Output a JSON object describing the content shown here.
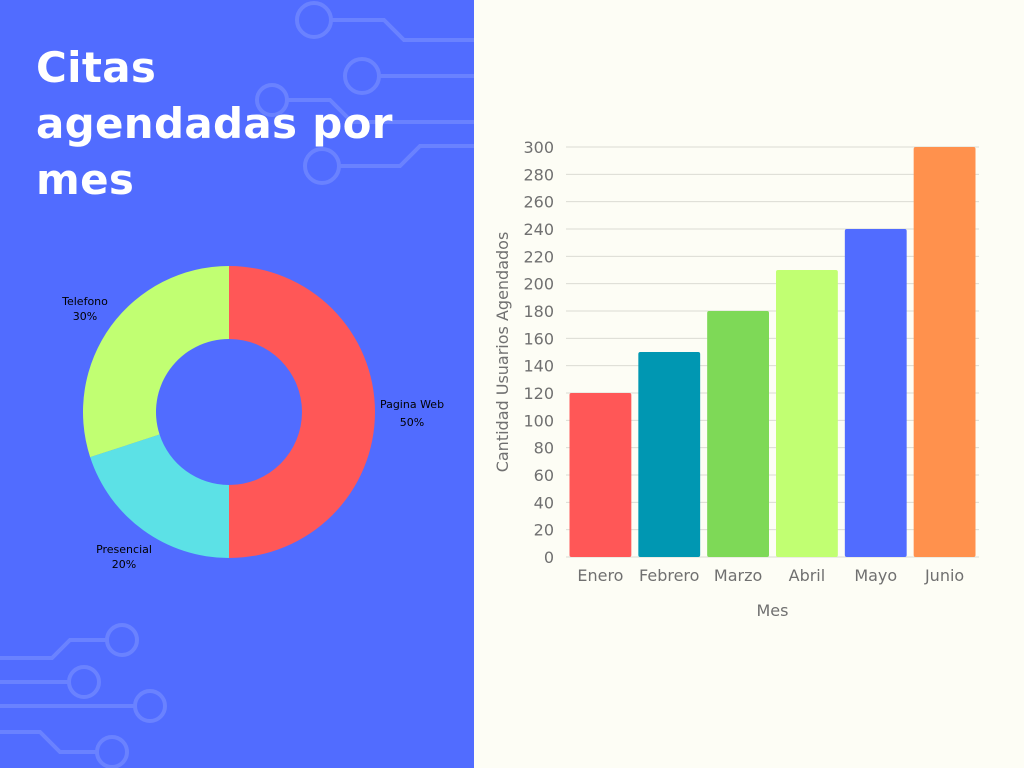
{
  "title_lines": [
    "Citas",
    "agendadas por",
    "mes"
  ],
  "colors": {
    "left_background": "#516cff",
    "right_background": "#fdfdf5",
    "circuit_lines": "#6a82ff"
  },
  "chart_data": [
    {
      "type": "pie",
      "variant": "donut",
      "slices": [
        {
          "label": "Pagina Web",
          "value": 50,
          "value_label": "50%",
          "color": "#ff5757"
        },
        {
          "label": "Presencial",
          "value": 20,
          "value_label": "20%",
          "color": "#5ce1e6"
        },
        {
          "label": "Telefono",
          "value": 30,
          "value_label": "30%",
          "color": "#c1ff72"
        }
      ]
    },
    {
      "type": "bar",
      "categories": [
        "Enero",
        "Febrero",
        "Marzo",
        "Abril",
        "Mayo",
        "Junio"
      ],
      "values": [
        120,
        150,
        180,
        210,
        240,
        300
      ],
      "colors": [
        "#ff5757",
        "#0097b2",
        "#7ed957",
        "#c1ff72",
        "#516cff",
        "#ff914d"
      ],
      "xlabel": "Mes",
      "ylabel": "Cantidad Usuarios Agendados",
      "ylim": [
        0,
        300
      ],
      "yticks": [
        0,
        20,
        40,
        60,
        80,
        100,
        120,
        140,
        160,
        180,
        200,
        220,
        240,
        260,
        280,
        300
      ],
      "grid": true
    }
  ]
}
